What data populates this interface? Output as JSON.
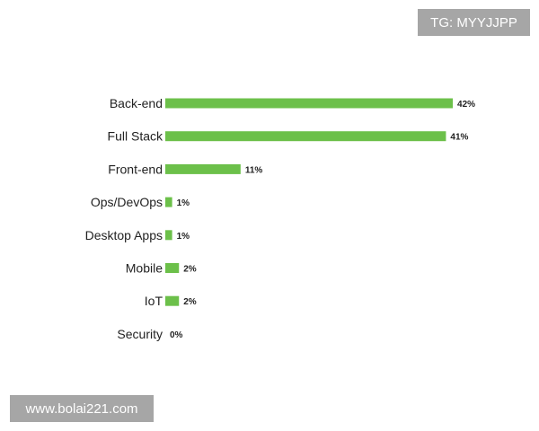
{
  "watermarks": {
    "top_right": "TG: MYYJJPP",
    "bottom_left": "www.bolai221.com"
  },
  "chart_data": {
    "type": "bar",
    "orientation": "horizontal",
    "categories": [
      "Back-end",
      "Full Stack",
      "Front-end",
      "Ops/DevOps",
      "Desktop Apps",
      "Mobile",
      "IoT",
      "Security"
    ],
    "values": [
      42,
      41,
      11,
      1,
      1,
      2,
      2,
      0
    ],
    "data_labels": [
      "42%",
      "41%",
      "11%",
      "1%",
      "1%",
      "2%",
      "2%",
      "0%"
    ],
    "unit": "%",
    "bar_color": "#6cc04a",
    "grid": false,
    "title": "",
    "xlabel": "",
    "ylabel": ""
  }
}
